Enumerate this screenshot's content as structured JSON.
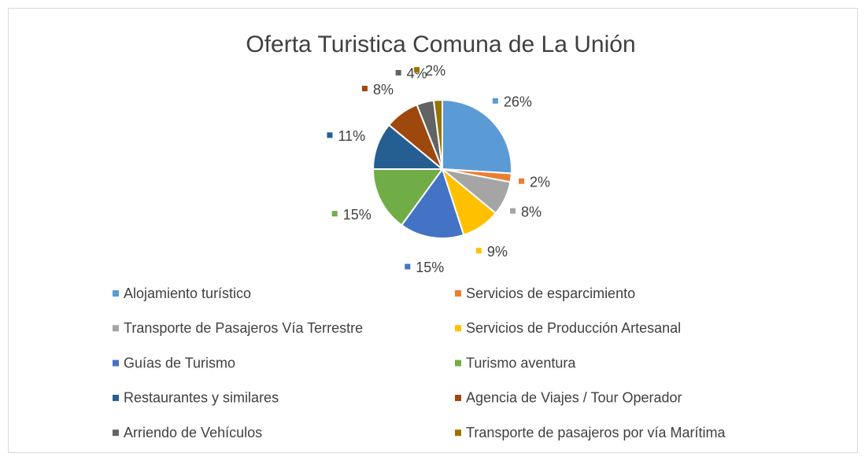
{
  "chart_data": {
    "type": "pie",
    "title": "Oferta Turistica Comuna de La Unión",
    "categories": [
      "Alojamiento turístico",
      "Servicios de esparcimiento",
      "Transporte de Pasajeros Vía Terrestre",
      "Servicios de Producción Artesanal",
      "Guías de Turismo",
      "Turismo aventura",
      "Restaurantes y similares",
      "Agencia de Viajes / Tour Operador",
      "Arriendo de Vehículos",
      "Transporte de pasajeros por vía Marítima"
    ],
    "values": [
      26,
      2,
      8,
      9,
      15,
      15,
      11,
      8,
      4,
      2
    ],
    "value_labels": [
      "26%",
      "2%",
      "8%",
      "9%",
      "15%",
      "15%",
      "11%",
      "8%",
      "4%",
      "2%"
    ],
    "colors": [
      "#5b9bd5",
      "#ed7d31",
      "#a5a5a5",
      "#ffc000",
      "#4472c4",
      "#70ad47",
      "#255e91",
      "#9e480e",
      "#636363",
      "#997300"
    ],
    "legend": "bottom"
  }
}
